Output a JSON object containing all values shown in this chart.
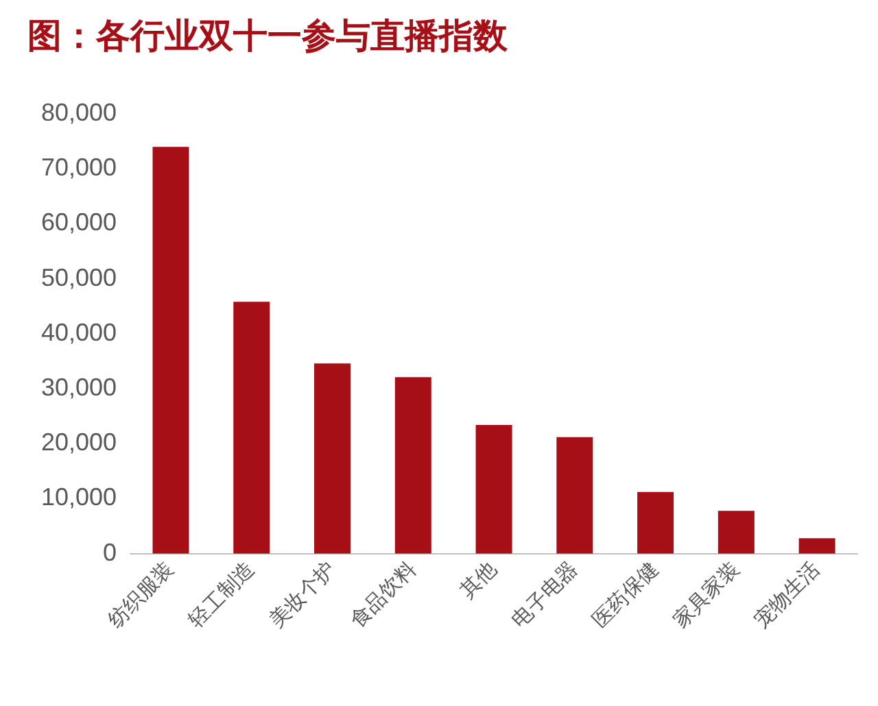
{
  "chart_data": {
    "type": "bar",
    "title": "图：各行业双十一参与直播指数",
    "categories": [
      "纺织服装",
      "轻工制造",
      "美妆个护",
      "食品饮料",
      "其他",
      "电子电器",
      "医药保健",
      "家具家装",
      "宠物生活"
    ],
    "values": [
      74000,
      45800,
      34600,
      32100,
      23400,
      21200,
      11200,
      7800,
      2800
    ],
    "color": "#a50f15",
    "ylim": [
      0,
      80000
    ],
    "yticks": [
      {
        "value": 0,
        "label": "0"
      },
      {
        "value": 10000,
        "label": "10,000"
      },
      {
        "value": 20000,
        "label": "20,000"
      },
      {
        "value": 30000,
        "label": "30,000"
      },
      {
        "value": 40000,
        "label": "40,000"
      },
      {
        "value": 50000,
        "label": "50,000"
      },
      {
        "value": 60000,
        "label": "60,000"
      },
      {
        "value": 70000,
        "label": "70,000"
      },
      {
        "value": 80000,
        "label": "80,000"
      }
    ],
    "grid": false,
    "legend": false
  }
}
